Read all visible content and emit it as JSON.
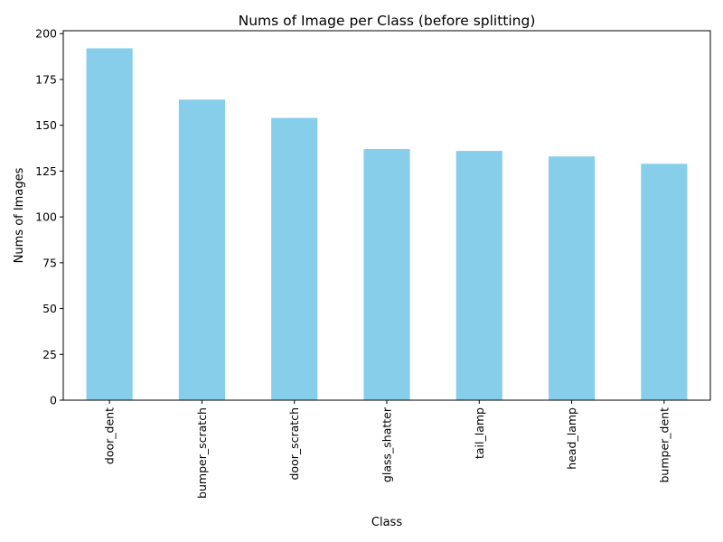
{
  "chart_data": {
    "type": "bar",
    "title": "Nums of Image per Class (before splitting)",
    "xlabel": "Class",
    "ylabel": "Nums of Images",
    "categories": [
      "door_dent",
      "bumper_scratch",
      "door_scratch",
      "glass_shatter",
      "tail_lamp",
      "head_lamp",
      "bumper_dent"
    ],
    "values": [
      192,
      164,
      154,
      137,
      136,
      133,
      129
    ],
    "ylim": [
      0,
      201.6
    ],
    "yticks": [
      0,
      25,
      50,
      75,
      100,
      125,
      150,
      175,
      200
    ],
    "grid": false,
    "bar_color": "#87CEEB",
    "x_tick_rotation": "vertical"
  }
}
